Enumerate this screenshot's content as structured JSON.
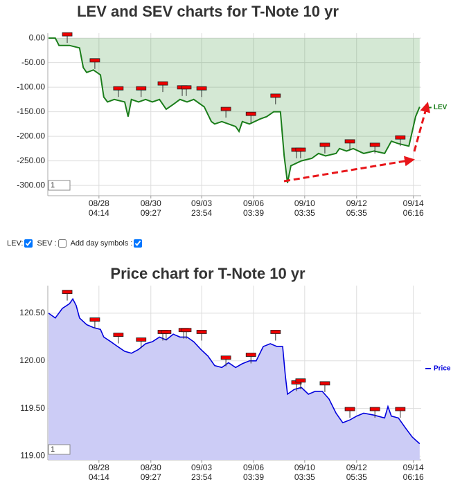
{
  "chart_data": [
    {
      "type": "line",
      "title": "LEV and SEV charts for T-Note 10 yr",
      "series": [
        {
          "name": "LEV",
          "color": "#1a7d1a",
          "fill": "rgba(60,150,60,0.22)",
          "x": [
            0.2,
            2.0,
            3.0,
            5.8,
            8.5,
            9.5,
            10.4,
            12.2,
            14.1,
            15.0,
            16.0,
            17.8,
            20.6,
            21.5,
            22.4,
            24.3,
            26.2,
            28.0,
            29.9,
            31.7,
            33.6,
            35.4,
            37.3,
            39.1,
            41.9,
            43.8,
            44.7,
            46.6,
            50.3,
            51.2,
            52.1,
            54.0,
            56.8,
            58.6,
            60.5,
            62.3,
            63.3,
            64.2,
            65.1,
            67.9,
            70.7,
            72.5,
            74.4,
            77.2,
            78.1,
            80.0,
            81.8,
            84.6,
            87.4,
            90.2,
            92.0,
            93.9,
            96.7,
            97.6,
            98.5,
            99.6
          ],
          "values": [
            0,
            0,
            -15,
            -15,
            -20,
            -60,
            -70,
            -65,
            -75,
            -120,
            -130,
            -125,
            -130,
            -160,
            -125,
            -130,
            -125,
            -130,
            -125,
            -145,
            -135,
            -125,
            -130,
            -125,
            -140,
            -170,
            -175,
            -170,
            -180,
            -190,
            -170,
            -175,
            -165,
            -160,
            -150,
            -150,
            -240,
            -295,
            -260,
            -250,
            -245,
            -235,
            -240,
            -235,
            -225,
            -230,
            -225,
            -235,
            -230,
            -235,
            -210,
            -215,
            -220,
            -190,
            -160,
            -140
          ]
        }
      ],
      "markers": {
        "x": [
          5.2,
          12.6,
          18.9,
          25.0,
          30.8,
          36.0,
          37.1,
          41.2,
          47.7,
          54.4,
          61.0,
          66.6,
          67.7,
          74.2,
          80.9,
          87.6,
          94.4
        ],
        "values": [
          7,
          -46,
          -103,
          -103,
          -93,
          -101,
          -101,
          -103,
          -145,
          -155,
          -118,
          -228,
          -228,
          -218,
          -211,
          -218,
          -203
        ]
      },
      "xlim": [
        0,
        100
      ],
      "xticks": [
        {
          "value": 13.7,
          "label": "08/28 04:14"
        },
        {
          "value": 27.6,
          "label": "08/30 09:27"
        },
        {
          "value": 41.2,
          "label": "09/03 23:54"
        },
        {
          "value": 55.1,
          "label": "09/06 03:39"
        },
        {
          "value": 68.8,
          "label": "09/10 03:35"
        },
        {
          "value": 82.7,
          "label": "09/12 05:35"
        },
        {
          "value": 97.9,
          "label": "09/14 06:16"
        }
      ],
      "ylim": [
        -321,
        10
      ],
      "yticks": [
        {
          "value": 0,
          "label": "0.00"
        },
        {
          "value": -50,
          "label": "-50.00"
        },
        {
          "value": -100,
          "label": "-100.00"
        },
        {
          "value": -150,
          "label": "-150.00"
        },
        {
          "value": -200,
          "label": "-200.00"
        },
        {
          "value": -250,
          "label": "-250.00"
        },
        {
          "value": -300,
          "label": "-300.00"
        }
      ],
      "grid": true,
      "input_value": "1"
    },
    {
      "type": "area",
      "title": "Price chart for T-Note 10 yr",
      "series": [
        {
          "name": "Price",
          "color": "#0000dd",
          "fill": "#ccccf6",
          "x": [
            0.2,
            2.0,
            3.9,
            5.8,
            6.7,
            7.6,
            8.5,
            10.4,
            12.2,
            14.1,
            15.0,
            16.9,
            18.7,
            20.6,
            22.4,
            24.3,
            26.2,
            28.0,
            29.9,
            31.7,
            33.6,
            35.4,
            37.3,
            39.1,
            41.0,
            42.9,
            44.7,
            46.6,
            48.4,
            50.3,
            52.1,
            54.0,
            55.8,
            57.7,
            59.6,
            61.4,
            62.9,
            63.6,
            64.2,
            66.0,
            67.9,
            69.8,
            71.6,
            73.5,
            75.3,
            77.2,
            79.0,
            80.9,
            82.7,
            84.6,
            87.4,
            90.2,
            91.1,
            92.0,
            93.9,
            95.7,
            97.6,
            99.6
          ],
          "values": [
            120.5,
            120.45,
            120.55,
            120.6,
            120.65,
            120.58,
            120.45,
            120.38,
            120.35,
            120.33,
            120.25,
            120.2,
            120.15,
            120.1,
            120.08,
            120.12,
            120.18,
            120.2,
            120.25,
            120.22,
            120.28,
            120.25,
            120.25,
            120.2,
            120.12,
            120.05,
            119.95,
            119.93,
            119.98,
            119.93,
            119.97,
            120.0,
            120.0,
            120.15,
            120.18,
            120.15,
            120.15,
            119.85,
            119.65,
            119.7,
            119.72,
            119.65,
            119.68,
            119.68,
            119.6,
            119.45,
            119.35,
            119.38,
            119.42,
            119.45,
            119.43,
            119.4,
            119.52,
            119.42,
            119.4,
            119.3,
            119.2,
            119.13
          ]
        }
      ],
      "markers": {
        "x": [
          5.2,
          12.6,
          18.9,
          25.0,
          30.8,
          31.7,
          36.4,
          37.1,
          41.2,
          47.7,
          54.4,
          61.0,
          66.6,
          67.7,
          74.2,
          80.9,
          87.6,
          94.4
        ],
        "values": [
          120.72,
          120.43,
          120.27,
          120.22,
          120.3,
          120.3,
          120.32,
          120.32,
          120.3,
          120.03,
          120.06,
          120.3,
          119.77,
          119.79,
          119.76,
          119.49,
          119.49,
          119.49
        ]
      },
      "xlim": [
        0,
        100
      ],
      "xticks": [
        {
          "value": 13.7,
          "label": "08/28 04:14"
        },
        {
          "value": 27.6,
          "label": "08/30 09:27"
        },
        {
          "value": 41.2,
          "label": "09/03 23:54"
        },
        {
          "value": 55.1,
          "label": "09/06 03:39"
        },
        {
          "value": 68.8,
          "label": "09/10 03:35"
        },
        {
          "value": 82.7,
          "label": "09/12 05:35"
        },
        {
          "value": 97.9,
          "label": "09/14 06:16"
        }
      ],
      "ylim": [
        118.96,
        120.79
      ],
      "yticks": [
        {
          "value": 120.5,
          "label": "120.50"
        },
        {
          "value": 120.0,
          "label": "120.00"
        },
        {
          "value": 119.5,
          "label": "119.50"
        },
        {
          "value": 119.0,
          "label": "119.00"
        }
      ],
      "grid": true,
      "input_value": "1"
    }
  ],
  "controls": [
    {
      "label": "LEV:",
      "checked": true
    },
    {
      "label": "SEV :",
      "checked": false
    },
    {
      "label": "Add day symbols :",
      "checked": true
    }
  ]
}
